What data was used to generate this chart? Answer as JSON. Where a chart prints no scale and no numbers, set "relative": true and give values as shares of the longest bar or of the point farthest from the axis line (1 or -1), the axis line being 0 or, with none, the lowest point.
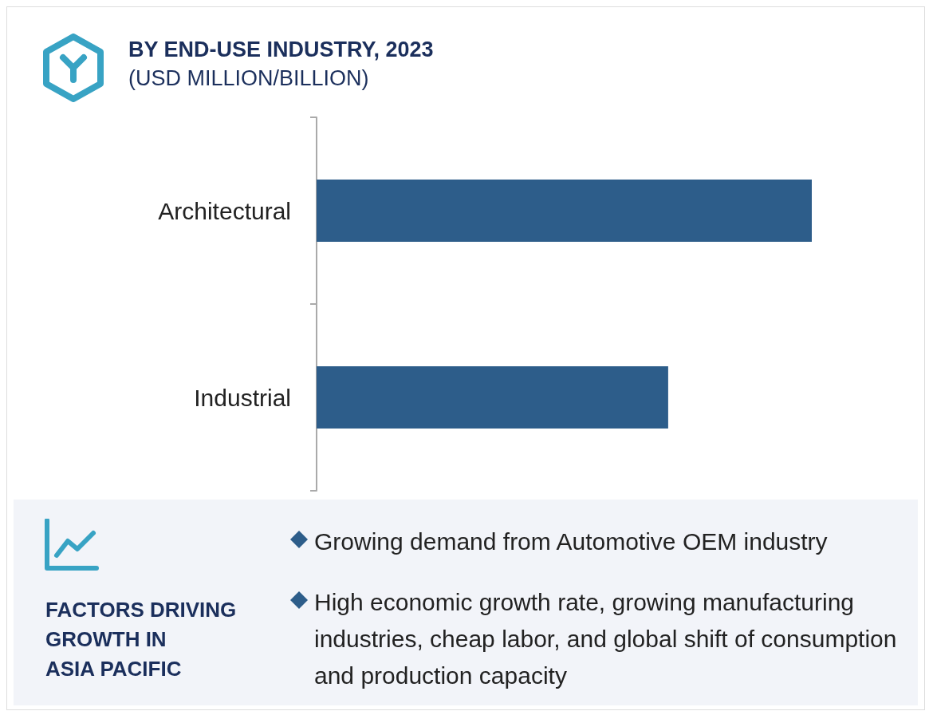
{
  "chart_data": {
    "type": "bar",
    "orientation": "horizontal",
    "relative": true,
    "title": "BY END-USE INDUSTRY, 2023",
    "subtitle": "(USD MILLION/BILLION)",
    "categories": [
      "Architectural",
      "Industrial"
    ],
    "values": [
      1,
      0.71
    ],
    "color": "#2d5d8a",
    "annotations": [
      "FACTORS DRIVING\nGROWTH IN\nASIA PACIFIC",
      "Growing demand from Automotive OEM industry",
      "High economic growth rate, growing manufacturing industries, cheap labor, and global shift of consumption and production capacity"
    ]
  }
}
